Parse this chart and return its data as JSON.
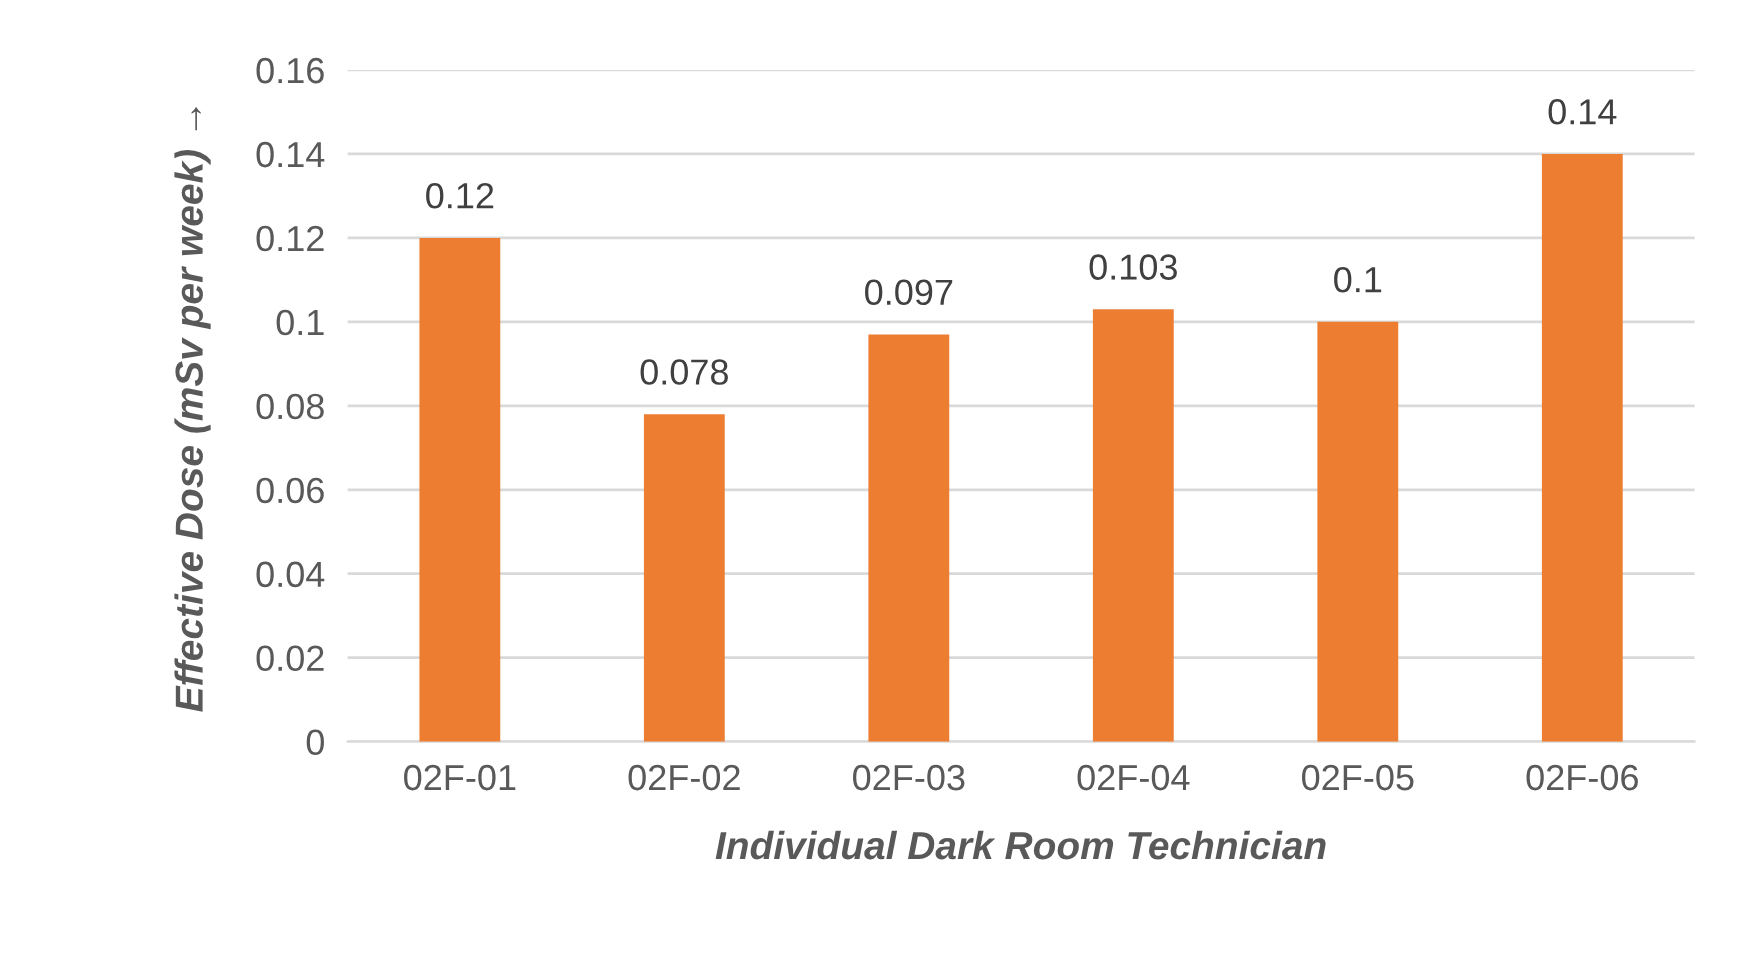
{
  "chart_data": {
    "type": "bar",
    "xlabel": "Individual Dark Room Technician",
    "ylabel": "Effective Dose (mSv per week) →",
    "categories": [
      "02F-01",
      "02F-02",
      "02F-03",
      "02F-04",
      "02F-05",
      "02F-06"
    ],
    "values": [
      0.12,
      0.078,
      0.097,
      0.103,
      0.1,
      0.14
    ],
    "color": "#ed7d31",
    "ylim": [
      0,
      0.16
    ],
    "yticks": [
      0,
      0.02,
      0.04,
      0.06,
      0.08,
      0.1,
      0.12,
      0.14,
      0.16
    ],
    "grid": "y",
    "data_labels": true,
    "legend": false
  }
}
